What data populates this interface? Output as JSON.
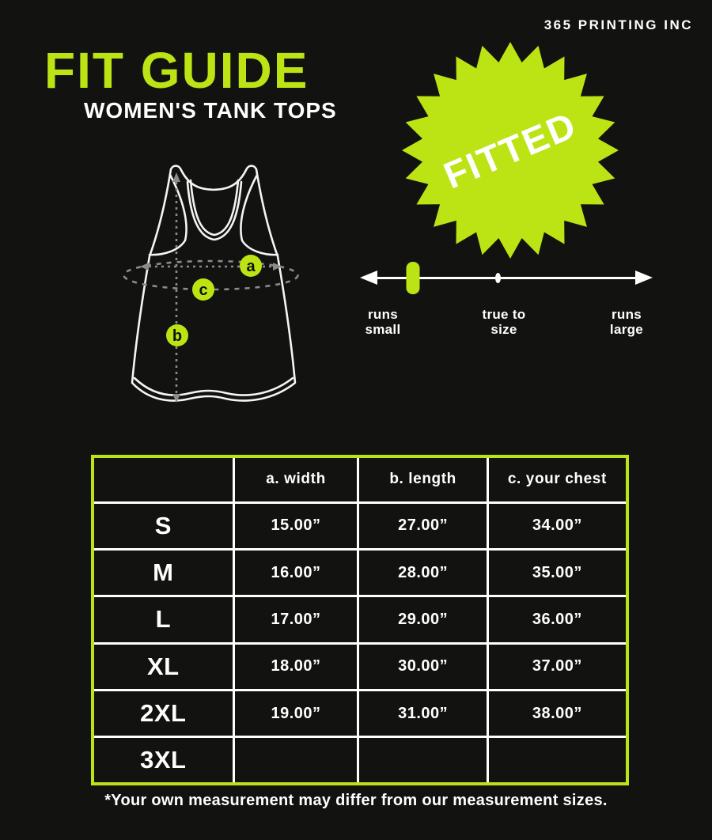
{
  "brand": "365 PRINTING INC",
  "header": {
    "title": "FIT GUIDE",
    "subtitle": "WOMEN'S TANK TOPS"
  },
  "badge": {
    "label": "FITTED"
  },
  "fit_scale": {
    "labels": {
      "left": [
        "runs",
        "small"
      ],
      "center": [
        "true to",
        "size"
      ],
      "right": [
        "runs",
        "large"
      ]
    },
    "marker_position_pct": 18
  },
  "diagram": {
    "point_a": "a",
    "point_b": "b",
    "point_c": "c"
  },
  "table": {
    "headers": [
      "",
      "a. width",
      "b. length",
      "c. your chest"
    ],
    "rows": [
      {
        "size": "S",
        "width": "15.00”",
        "length": "27.00”",
        "chest": "34.00”"
      },
      {
        "size": "M",
        "width": "16.00”",
        "length": "28.00”",
        "chest": "35.00”"
      },
      {
        "size": "L",
        "width": "17.00”",
        "length": "29.00”",
        "chest": "36.00”"
      },
      {
        "size": "XL",
        "width": "18.00”",
        "length": "30.00”",
        "chest": "37.00”"
      },
      {
        "size": "2XL",
        "width": "19.00”",
        "length": "31.00”",
        "chest": "38.00”"
      },
      {
        "size": "3XL",
        "width": "",
        "length": "",
        "chest": ""
      }
    ]
  },
  "footnote": "*Your own measurement may differ from our measurement sizes.",
  "colors": {
    "accent": "#bce414",
    "background": "#121310",
    "text": "#ffffff"
  }
}
